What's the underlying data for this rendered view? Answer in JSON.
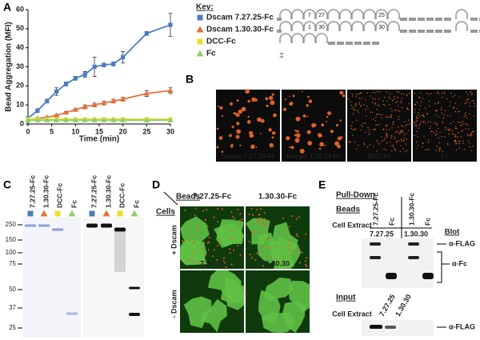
{
  "chart_data": {
    "type": "line",
    "xlabel": "Time (min)",
    "ylabel": "Bead Aggregation (MFI)",
    "xlim": [
      0,
      30
    ],
    "xticks": [
      0,
      5,
      10,
      15,
      20,
      25,
      30
    ],
    "ylim": [
      0,
      60
    ],
    "yticks": [
      0,
      10,
      20,
      30,
      40,
      50,
      60
    ],
    "legend_title": "Key:",
    "series": [
      {
        "name": "Dscam 7.27.25-Fc",
        "color": "#4a7cc0",
        "marker": "square",
        "x": [
          0,
          2,
          4,
          6,
          8,
          10,
          12,
          14,
          16,
          18,
          20,
          25,
          30
        ],
        "values": [
          3,
          7,
          12,
          17,
          21,
          24,
          26,
          30,
          31,
          31.5,
          35,
          47.5,
          52
        ],
        "errors": [
          0.5,
          1,
          1,
          2,
          1,
          1,
          1.5,
          5,
          1,
          1,
          3,
          1,
          6
        ]
      },
      {
        "name": "Dscam 1.30.30-Fc",
        "color": "#e8703a",
        "marker": "triangle",
        "x": [
          0,
          2,
          4,
          6,
          8,
          10,
          12,
          14,
          16,
          18,
          20,
          25,
          30
        ],
        "values": [
          2,
          3,
          3.5,
          4.5,
          6,
          7.5,
          9,
          10,
          11,
          12,
          13,
          16,
          17.5
        ],
        "errors": [
          0.3,
          0.3,
          0.3,
          0.4,
          0.5,
          0.5,
          1,
          1,
          1,
          1,
          1,
          1.5,
          1.5
        ]
      },
      {
        "name": "DCC-Fc",
        "color": "#e8e030",
        "marker": "square",
        "x": [
          0,
          2,
          4,
          6,
          8,
          10,
          12,
          14,
          16,
          18,
          20,
          25,
          30
        ],
        "values": [
          2.5,
          2.5,
          2.5,
          2.5,
          2.5,
          2.5,
          2.5,
          2.5,
          2.5,
          2.5,
          2.5,
          2.5,
          2.5
        ]
      },
      {
        "name": "Fc",
        "color": "#8ccf6a",
        "marker": "triangle",
        "x": [
          0,
          2,
          4,
          6,
          8,
          10,
          12,
          14,
          16,
          18,
          20,
          25,
          30
        ],
        "values": [
          2,
          2,
          2,
          2,
          2,
          2,
          2,
          2,
          2,
          2,
          2,
          2,
          2
        ]
      }
    ]
  },
  "panels": {
    "a": {
      "label": "A",
      "exon_labels": [
        [
          "7",
          "27",
          "25"
        ],
        [
          "1",
          "30",
          "30"
        ]
      ]
    },
    "b": {
      "label": "B",
      "images": [
        "Dscam 7.27.25-Fc",
        "Dscam 1.30.30-Fc",
        "DCC-Fc",
        "Fc"
      ]
    },
    "c": {
      "label": "C",
      "lanes": [
        "7.27.25-Fc",
        "1.30.30-Fc",
        "DCC-Fc",
        "Fc"
      ],
      "mw": [
        250,
        150,
        100,
        75,
        50,
        37,
        25
      ]
    },
    "d": {
      "label": "D",
      "beads": "Beads",
      "cells": "Cells",
      "bead_types": [
        "7.27.25-Fc",
        "1.30.30-Fc"
      ],
      "conditions": [
        "+ Dscam",
        "- Dscam"
      ],
      "cell_types": [
        "7.27.25",
        "1.30.30"
      ]
    },
    "e": {
      "label": "E",
      "pull_down": "Pull-Down",
      "beads": "Beads",
      "bead_lanes": [
        "7.27.25-Fc",
        "Fc",
        "1.30.30-Fc",
        "Fc"
      ],
      "cell_extract": "Cell Extract",
      "extract_lanes": [
        "7.27.25",
        "1.30.30"
      ],
      "blot": "Blot",
      "blot_labels": [
        "α-FLAG",
        "α-Fc"
      ],
      "input": "Input",
      "input_label": "α-FLAG"
    }
  }
}
